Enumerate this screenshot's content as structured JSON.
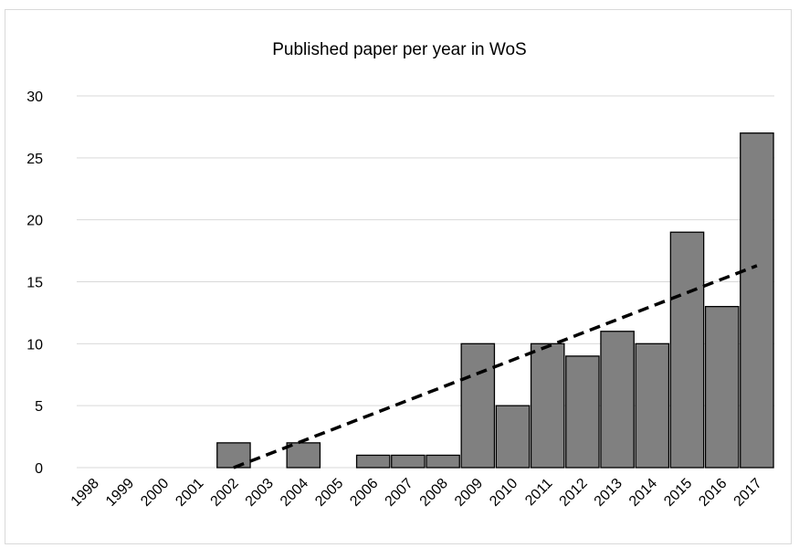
{
  "chart_data": {
    "type": "bar",
    "title": "Published paper per year in WoS",
    "xlabel": "",
    "ylabel": "",
    "categories": [
      "1998",
      "1999",
      "2000",
      "2001",
      "2002",
      "2003",
      "2004",
      "2005",
      "2006",
      "2007",
      "2008",
      "2009",
      "2010",
      "2011",
      "2012",
      "2013",
      "2014",
      "2015",
      "2016",
      "2017"
    ],
    "values": [
      0,
      0,
      0,
      0,
      2,
      0,
      2,
      0,
      1,
      1,
      1,
      10,
      5,
      10,
      9,
      11,
      10,
      19,
      13,
      27
    ],
    "ylim": [
      0,
      30
    ],
    "yticks": [
      0,
      5,
      10,
      15,
      20,
      25,
      30
    ],
    "grid": "horizontal",
    "legend": "none",
    "trendline": {
      "type": "linear",
      "style": "dashed",
      "from_category": "2002",
      "to_category": "2017",
      "start_value": 0,
      "end_value": 16.3
    },
    "colors": {
      "bar_fill": "#808080",
      "bar_stroke": "#000000",
      "grid": "#d9d9d9",
      "trendline": "#000000"
    }
  }
}
